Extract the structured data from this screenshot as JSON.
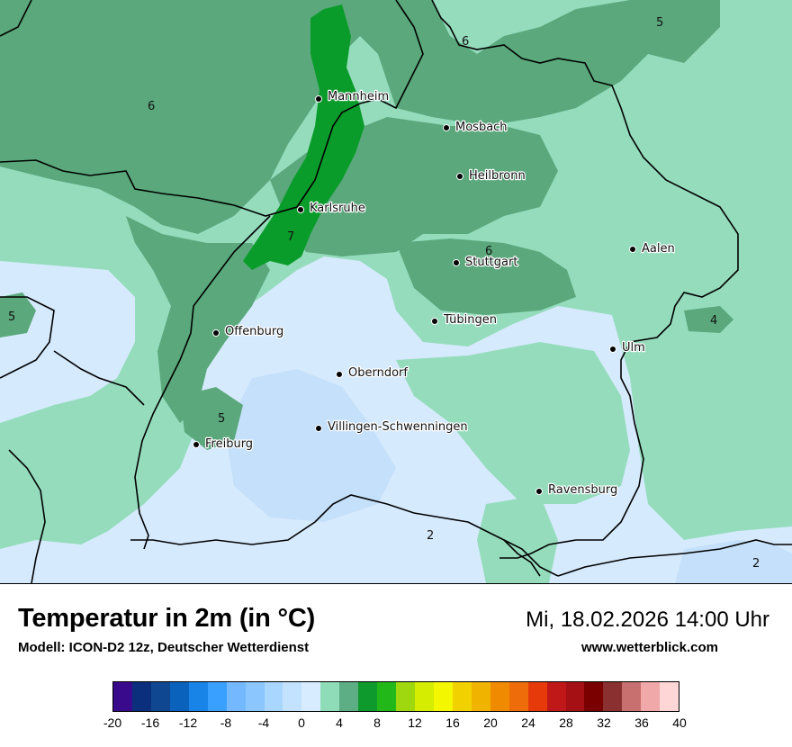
{
  "map": {
    "cities": [
      {
        "name": "Mannheim"
      },
      {
        "name": "Mosbach"
      },
      {
        "name": "Heilbronn"
      },
      {
        "name": "Karlsruhe"
      },
      {
        "name": "Stuttgart"
      },
      {
        "name": "Aalen"
      },
      {
        "name": "Tübingen"
      },
      {
        "name": "Offenburg"
      },
      {
        "name": "Ulm"
      },
      {
        "name": "Oberndorf"
      },
      {
        "name": "Villingen-Schwenningen"
      },
      {
        "name": "Freiburg"
      },
      {
        "name": "Ravensburg"
      }
    ],
    "contour_labels": [
      "6",
      "5",
      "6",
      "7",
      "6",
      "5",
      "4",
      "5",
      "2",
      "2"
    ],
    "colors": {
      "temp_2": "#d6eafd",
      "temp_3": "#c4e0fa",
      "temp_4": "#95dcbd",
      "temp_5": "#66ae84",
      "temp_6": "#5aa87c",
      "temp_7": "#0a9c2a",
      "border": "#000000"
    }
  },
  "header": {
    "title": "Temperatur in 2m (in °C)",
    "subtitle": "Modell: ICON-D2 12z, Deutscher Wetterdienst",
    "datetime": "Mi, 18.02.2026 14:00 Uhr",
    "website": "www.wetterblick.com"
  },
  "legend": {
    "colors": [
      "#3a0a8c",
      "#0b2f7d",
      "#0f4790",
      "#0a62bd",
      "#1884e8",
      "#3aa0ff",
      "#74b8ff",
      "#8bc6ff",
      "#a9d6ff",
      "#c3e2ff",
      "#d8ecff",
      "#8fdcb8",
      "#5dae84",
      "#0f9a2e",
      "#23b81a",
      "#9fd80e",
      "#d4ed00",
      "#f3f700",
      "#f1d200",
      "#efb300",
      "#f08a00",
      "#ee6d0a",
      "#e63a0a",
      "#c01818",
      "#a51014",
      "#7a0000",
      "#8a3030",
      "#c87070",
      "#f0a8a8",
      "#ffd6d6"
    ],
    "ticks": [
      "-20",
      "-16",
      "-12",
      "-8",
      "-4",
      "0",
      "4",
      "8",
      "12",
      "16",
      "20",
      "24",
      "28",
      "32",
      "36",
      "40"
    ]
  }
}
